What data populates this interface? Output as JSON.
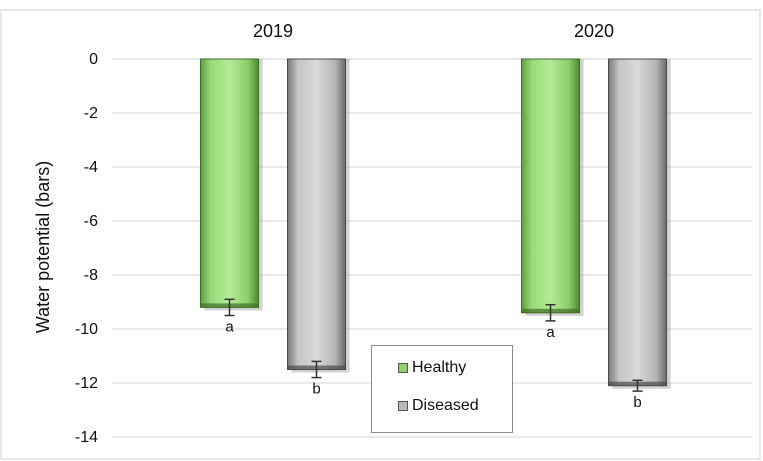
{
  "chart_data": {
    "type": "bar",
    "title": "",
    "ylabel": "Water potential (bars)",
    "xlabel": "",
    "ylim": [
      -14,
      0
    ],
    "yticks": [
      0,
      -2,
      -4,
      -6,
      -8,
      -10,
      -12,
      -14
    ],
    "ytick_labels": [
      "0",
      "-2",
      "-4",
      "-6",
      "-8",
      "-10",
      "-12",
      "-14"
    ],
    "grid": true,
    "legend_position": "bottom-center",
    "categories": [
      "2019",
      "2020"
    ],
    "series": [
      {
        "name": "Healthy",
        "color": "#8fd06f",
        "values": [
          -9.2,
          -9.4
        ],
        "errors": [
          0.3,
          0.3
        ],
        "labels": [
          "a",
          "a"
        ]
      },
      {
        "name": "Diseased",
        "color": "#b9b9b9",
        "values": [
          -11.5,
          -12.1
        ],
        "errors": [
          0.3,
          0.2
        ],
        "labels": [
          "b",
          "b"
        ]
      }
    ]
  }
}
